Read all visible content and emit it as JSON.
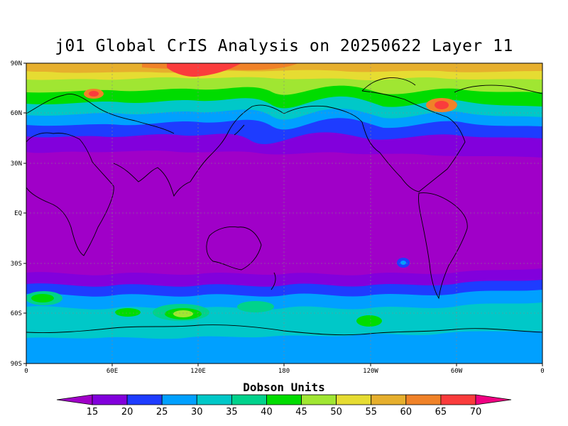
{
  "title": "j01 Global CrIS Analysis on 20250622 Layer 11",
  "map": {
    "lat_ticks": [
      "90N",
      "60N",
      "30N",
      "EQ",
      "30S",
      "60S",
      "90S"
    ],
    "lon_ticks": [
      "0",
      "60E",
      "120E",
      "180",
      "120W",
      "60W",
      "0"
    ]
  },
  "legend": {
    "title": "Dobson Units",
    "labels": [
      "15",
      "20",
      "25",
      "30",
      "35",
      "40",
      "45",
      "50",
      "55",
      "60",
      "65",
      "70"
    ],
    "colors": [
      "#a000c8",
      "#8200dc",
      "#1e3cff",
      "#00a0ff",
      "#00c8c8",
      "#00d28c",
      "#00dc00",
      "#a0e632",
      "#e6dc32",
      "#e6af2d",
      "#f08228",
      "#fa3c3c",
      "#f00082"
    ]
  }
}
